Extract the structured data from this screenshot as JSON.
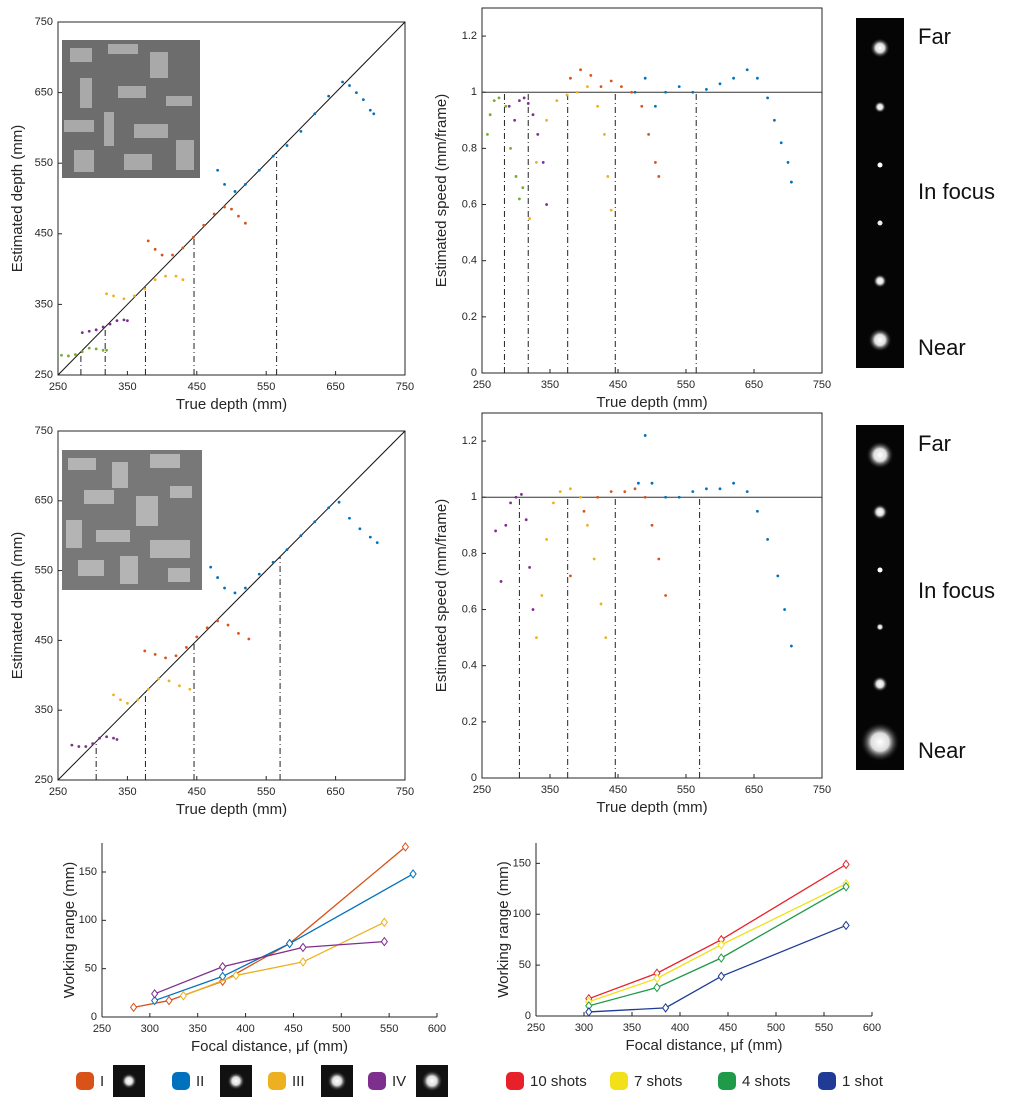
{
  "chart_data": [
    {
      "type": "scatter",
      "x_label": "True depth (mm)",
      "y_label": "Estimated depth (mm)",
      "xlim": [
        250,
        750
      ],
      "ylim": [
        250,
        750
      ],
      "xticks": [
        250,
        350,
        450,
        550,
        650,
        750
      ],
      "yticks": [
        250,
        350,
        450,
        550,
        650,
        750
      ],
      "diagonal": true,
      "box": true,
      "vlines": [
        283,
        318,
        376,
        446,
        565
      ],
      "series": [
        {
          "color": "#77ac30",
          "x": [
            255,
            265,
            275,
            285,
            295,
            305,
            315,
            320
          ],
          "values": [
            278,
            277,
            279,
            283,
            288,
            287,
            285,
            285
          ]
        },
        {
          "color": "#7e2f8e",
          "x": [
            285,
            295,
            305,
            315,
            325,
            335,
            345,
            350
          ],
          "values": [
            310,
            312,
            314,
            318,
            322,
            327,
            328,
            327
          ]
        },
        {
          "color": "#edb120",
          "x": [
            320,
            330,
            345,
            360,
            375,
            390,
            405,
            420,
            430
          ],
          "values": [
            365,
            362,
            358,
            362,
            372,
            385,
            390,
            390,
            385
          ]
        },
        {
          "color": "#d95319",
          "x": [
            380,
            390,
            400,
            415,
            430,
            445,
            460,
            475,
            490,
            500,
            510,
            520
          ],
          "values": [
            440,
            428,
            420,
            420,
            430,
            445,
            462,
            478,
            488,
            485,
            475,
            465
          ]
        },
        {
          "color": "#0072bd",
          "x": [
            480,
            490,
            505,
            520,
            540,
            560,
            580,
            600,
            620,
            640,
            660,
            670,
            680,
            690,
            700,
            705
          ],
          "values": [
            540,
            520,
            510,
            520,
            540,
            560,
            575,
            595,
            620,
            645,
            665,
            660,
            650,
            640,
            625,
            620
          ]
        }
      ]
    },
    {
      "type": "scatter",
      "x_label": "True depth (mm)",
      "y_label": "Estimated speed (mm/frame)",
      "xlim": [
        250,
        750
      ],
      "ylim": [
        0,
        1.3
      ],
      "xticks": [
        250,
        350,
        450,
        550,
        650,
        750
      ],
      "yticks": [
        0,
        0.2,
        0.4,
        0.6,
        0.8,
        1,
        1.2
      ],
      "hline": 1,
      "box": true,
      "vlines": [
        283,
        318,
        376,
        446,
        565
      ],
      "series": [
        {
          "color": "#77ac30",
          "x": [
            258,
            262,
            268,
            275,
            285,
            292,
            300,
            305,
            310
          ],
          "values": [
            0.85,
            0.92,
            0.97,
            0.98,
            0.95,
            0.8,
            0.7,
            0.62,
            0.66
          ]
        },
        {
          "color": "#7e2f8e",
          "x": [
            290,
            298,
            305,
            312,
            318,
            325,
            332,
            340,
            345
          ],
          "values": [
            0.95,
            0.9,
            0.97,
            0.98,
            0.96,
            0.92,
            0.85,
            0.75,
            0.6
          ]
        },
        {
          "color": "#edb120",
          "x": [
            320,
            330,
            345,
            360,
            375,
            390,
            405,
            420,
            430,
            435,
            440
          ],
          "values": [
            0.55,
            0.75,
            0.9,
            0.97,
            0.99,
            1.0,
            1.02,
            0.95,
            0.85,
            0.7,
            0.58
          ]
        },
        {
          "color": "#d95319",
          "x": [
            380,
            395,
            410,
            425,
            440,
            455,
            470,
            485,
            495,
            505,
            510
          ],
          "values": [
            1.05,
            1.08,
            1.06,
            1.02,
            1.04,
            1.02,
            1.0,
            0.95,
            0.85,
            0.75,
            0.7
          ]
        },
        {
          "color": "#0072bd",
          "x": [
            475,
            490,
            505,
            520,
            540,
            560,
            580,
            600,
            620,
            640,
            655,
            670,
            680,
            690,
            700,
            705
          ],
          "values": [
            1.0,
            1.05,
            0.95,
            1.0,
            1.02,
            1.0,
            1.01,
            1.03,
            1.05,
            1.08,
            1.05,
            0.98,
            0.9,
            0.82,
            0.75,
            0.68
          ]
        }
      ]
    },
    {
      "type": "scatter",
      "x_label": "True depth (mm)",
      "y_label": "Estimated depth (mm)",
      "xlim": [
        250,
        750
      ],
      "ylim": [
        250,
        750
      ],
      "xticks": [
        250,
        350,
        450,
        550,
        650,
        750
      ],
      "yticks": [
        250,
        350,
        450,
        550,
        650,
        750
      ],
      "diagonal": true,
      "box": true,
      "vlines": [
        305,
        376,
        446,
        570
      ],
      "series": [
        {
          "color": "#7e2f8e",
          "x": [
            270,
            280,
            290,
            300,
            310,
            320,
            330,
            335
          ],
          "values": [
            300,
            298,
            298,
            302,
            310,
            312,
            310,
            308
          ]
        },
        {
          "color": "#edb120",
          "x": [
            330,
            340,
            350,
            365,
            380,
            395,
            410,
            425,
            440
          ],
          "values": [
            372,
            365,
            360,
            365,
            380,
            395,
            392,
            385,
            380
          ]
        },
        {
          "color": "#d95319",
          "x": [
            375,
            390,
            405,
            420,
            435,
            450,
            465,
            480,
            495,
            510,
            525
          ],
          "values": [
            435,
            430,
            425,
            428,
            440,
            455,
            468,
            478,
            472,
            460,
            452
          ]
        },
        {
          "color": "#0072bd",
          "x": [
            470,
            480,
            490,
            505,
            520,
            540,
            560,
            580,
            600,
            620,
            640,
            655,
            670,
            685,
            700,
            710
          ],
          "values": [
            555,
            540,
            525,
            518,
            525,
            545,
            562,
            580,
            600,
            620,
            640,
            648,
            625,
            610,
            598,
            590
          ]
        }
      ]
    },
    {
      "type": "scatter",
      "x_label": "True depth (mm)",
      "y_label": "Estimated speed (mm/frame)",
      "xlim": [
        250,
        750
      ],
      "ylim": [
        0,
        1.3
      ],
      "xticks": [
        250,
        350,
        450,
        550,
        650,
        750
      ],
      "yticks": [
        0,
        0.2,
        0.4,
        0.6,
        0.8,
        1,
        1.2
      ],
      "hline": 1,
      "box": true,
      "vlines": [
        305,
        376,
        446,
        570
      ],
      "series": [
        {
          "color": "#7e2f8e",
          "x": [
            270,
            278,
            285,
            292,
            300,
            308,
            315,
            320,
            325
          ],
          "values": [
            0.88,
            0.7,
            0.9,
            0.98,
            1.0,
            1.01,
            0.92,
            0.75,
            0.6
          ]
        },
        {
          "color": "#edb120",
          "x": [
            330,
            338,
            345,
            355,
            365,
            380,
            395,
            405,
            415,
            425,
            432
          ],
          "values": [
            0.5,
            0.65,
            0.85,
            0.98,
            1.02,
            1.03,
            1.0,
            0.9,
            0.78,
            0.62,
            0.5
          ]
        },
        {
          "color": "#d95319",
          "x": [
            380,
            400,
            420,
            440,
            460,
            475,
            490,
            500,
            510,
            520
          ],
          "values": [
            0.72,
            0.95,
            1.0,
            1.02,
            1.02,
            1.03,
            1.0,
            0.9,
            0.78,
            0.65
          ]
        },
        {
          "color": "#0072bd",
          "x": [
            480,
            490,
            500,
            520,
            540,
            560,
            580,
            600,
            620,
            640,
            655,
            670,
            685,
            695,
            705
          ],
          "values": [
            1.05,
            1.22,
            1.05,
            1.0,
            1.0,
            1.02,
            1.03,
            1.03,
            1.05,
            1.02,
            0.95,
            0.85,
            0.72,
            0.6,
            0.47
          ]
        }
      ]
    },
    {
      "type": "line",
      "x_label": "Focal distance,  μf (mm)",
      "y_label": "Working range (mm)",
      "xlim": [
        250,
        600
      ],
      "ylim": [
        0,
        180
      ],
      "xticks": [
        250,
        300,
        350,
        400,
        450,
        500,
        550,
        600
      ],
      "yticks": [
        0,
        50,
        100,
        150
      ],
      "box": false,
      "series": [
        {
          "name": "I",
          "color": "#d95319",
          "x": [
            283,
            320,
            376,
            446,
            567
          ],
          "values": [
            10,
            17,
            37,
            76,
            176
          ]
        },
        {
          "name": "II",
          "color": "#0072bd",
          "x": [
            305,
            376,
            446,
            575
          ],
          "values": [
            17,
            42,
            76,
            148
          ]
        },
        {
          "name": "III",
          "color": "#edb120",
          "x": [
            335,
            390,
            460,
            545
          ],
          "values": [
            22,
            43,
            57,
            98
          ]
        },
        {
          "name": "IV",
          "color": "#7e2f8e",
          "x": [
            305,
            376,
            460,
            545
          ],
          "values": [
            24,
            52,
            72,
            78
          ]
        }
      ]
    },
    {
      "type": "line",
      "x_label": "Focal distance,  μf (mm)",
      "y_label": "Working range (mm)",
      "xlim": [
        250,
        600
      ],
      "ylim": [
        0,
        170
      ],
      "xticks": [
        250,
        300,
        350,
        400,
        450,
        500,
        550,
        600
      ],
      "yticks": [
        0,
        50,
        100,
        150
      ],
      "box": false,
      "series": [
        {
          "name": "10 shots",
          "color": "#e8202a",
          "x": [
            305,
            376,
            443,
            573
          ],
          "values": [
            17,
            42,
            75,
            149
          ]
        },
        {
          "name": "7 shots",
          "color": "#f2e01a",
          "x": [
            305,
            376,
            443,
            573
          ],
          "values": [
            14,
            37,
            70,
            130
          ]
        },
        {
          "name": "4 shots",
          "color": "#1e9a48",
          "x": [
            305,
            376,
            443,
            573
          ],
          "values": [
            10,
            28,
            57,
            127
          ]
        },
        {
          "name": "1 shot",
          "color": "#1f3b95",
          "x": [
            305,
            385,
            443,
            573
          ],
          "values": [
            4,
            8,
            39,
            89
          ]
        }
      ]
    }
  ],
  "panels": [
    {
      "labels": [
        "Far",
        "In focus",
        "Near"
      ]
    },
    {
      "labels": [
        "Far",
        "In focus",
        "Near"
      ]
    }
  ]
}
